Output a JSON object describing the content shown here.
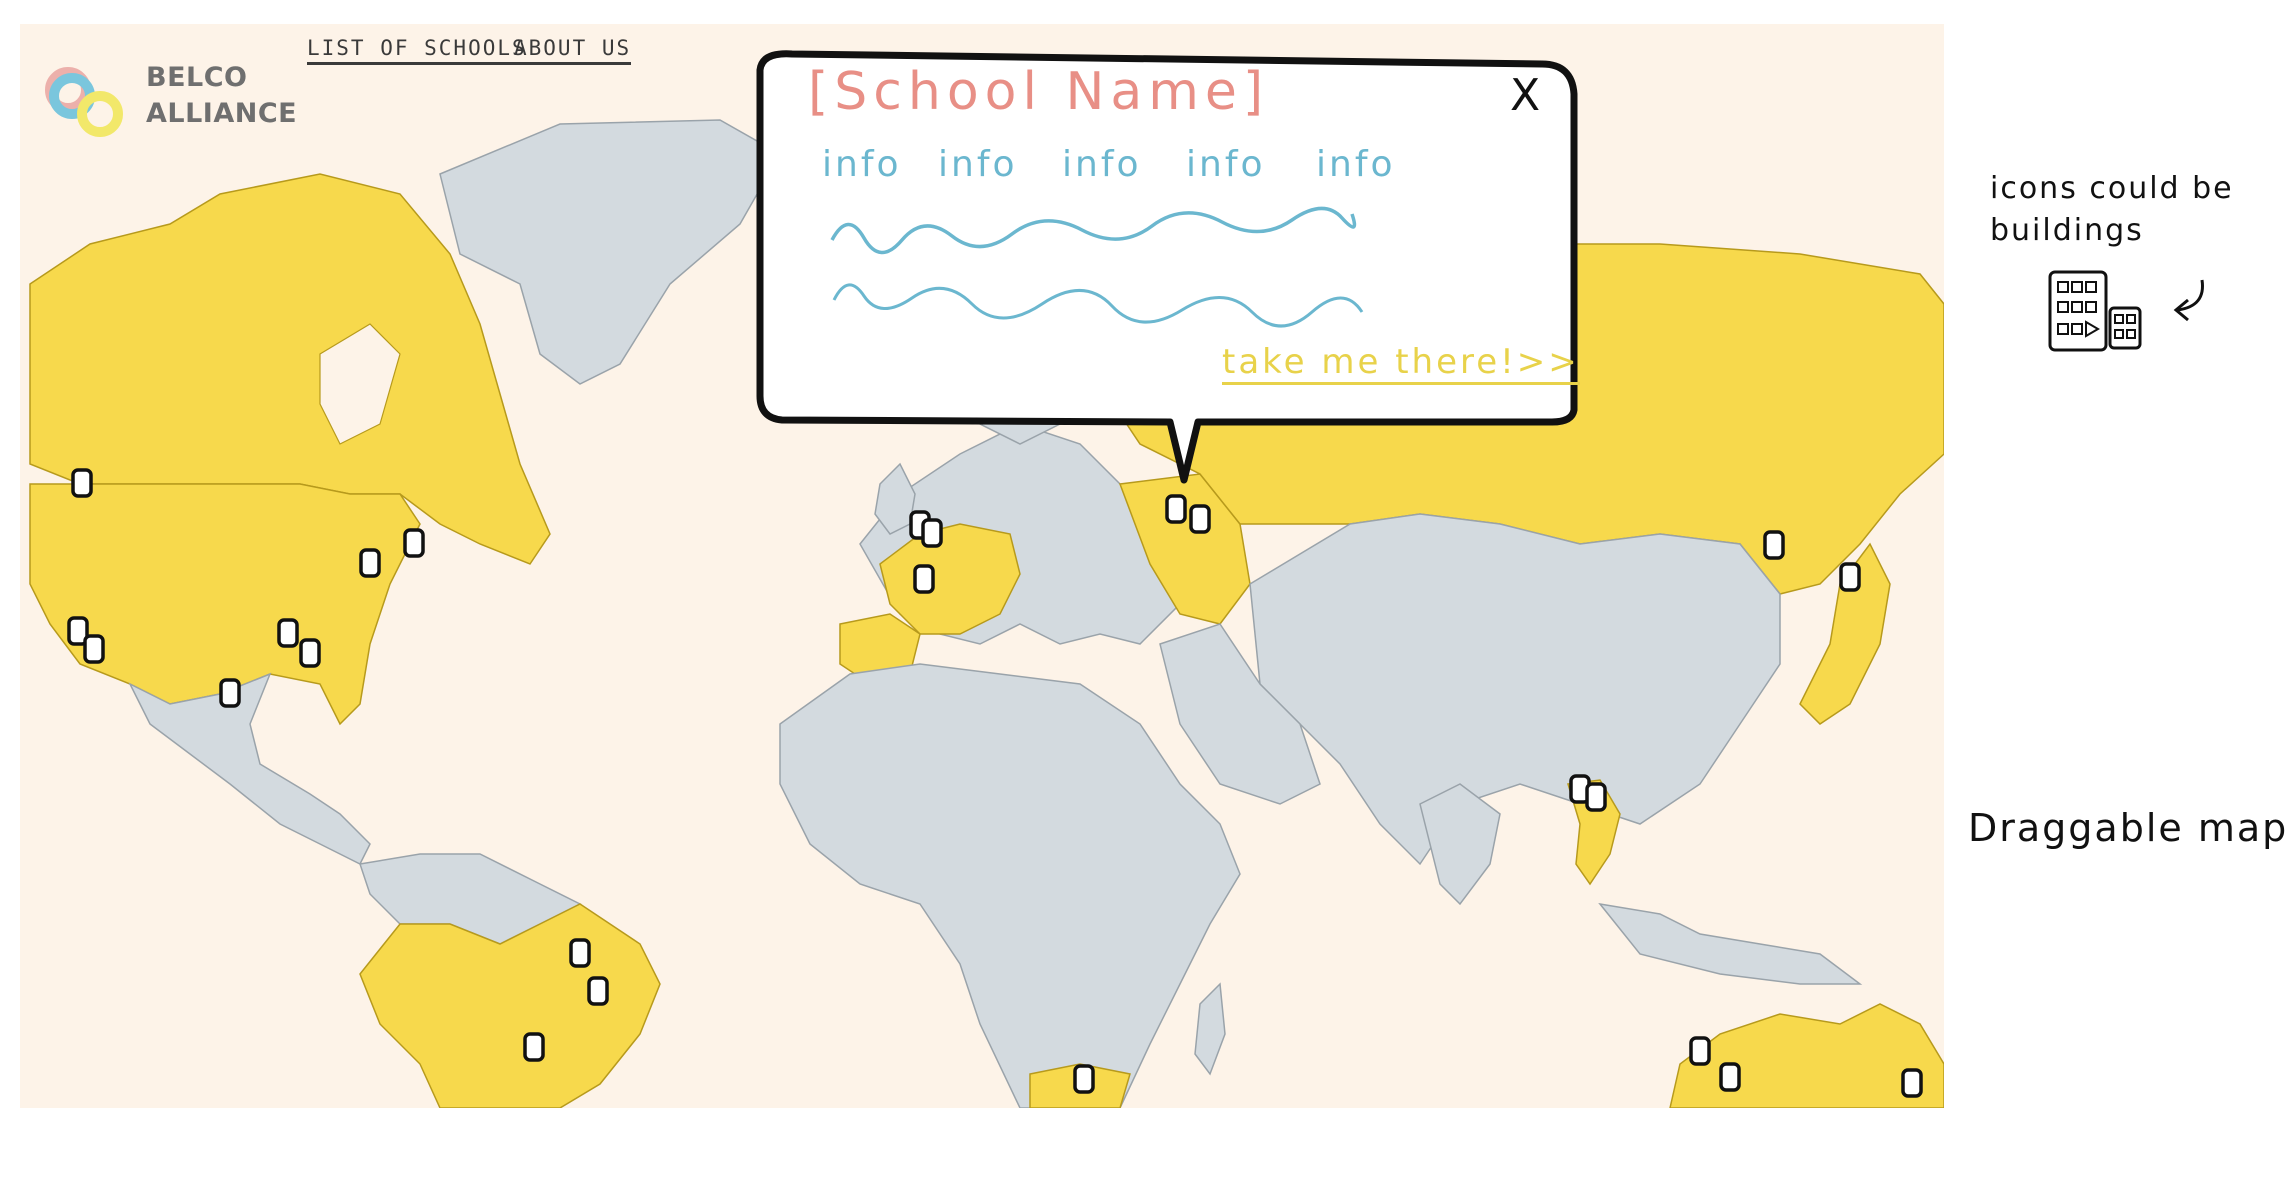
{
  "brand": {
    "line1": "BELCO",
    "line2": "ALLIANCE"
  },
  "nav": {
    "list_label": "LIST OF SCHOOLS",
    "about_label": "ABOUT US"
  },
  "popup": {
    "title": "[School Name]",
    "close_label": "X",
    "info_items": [
      "info",
      "info",
      "info",
      "info",
      "info"
    ],
    "cta_label": "take me there!>>"
  },
  "annotations": {
    "icons_note": "icons could be buildings",
    "map_note": "Draggable map"
  },
  "colors": {
    "member_country": "#f7d94c",
    "other_land": "#d3dadf",
    "ocean": "#fdf3e8",
    "title_accent": "#e88f86",
    "info_accent": "#6bb7cf",
    "cta_accent": "#e8d24a",
    "logo_ring_blue": "#7ac6dd",
    "logo_ring_yellow": "#f2e86a",
    "logo_ring_pink": "#e9a3a0"
  },
  "icons": {
    "school_pin": "building-pin-icon",
    "close": "close-icon",
    "building": "building-icon",
    "arrow": "curved-arrow-icon"
  }
}
